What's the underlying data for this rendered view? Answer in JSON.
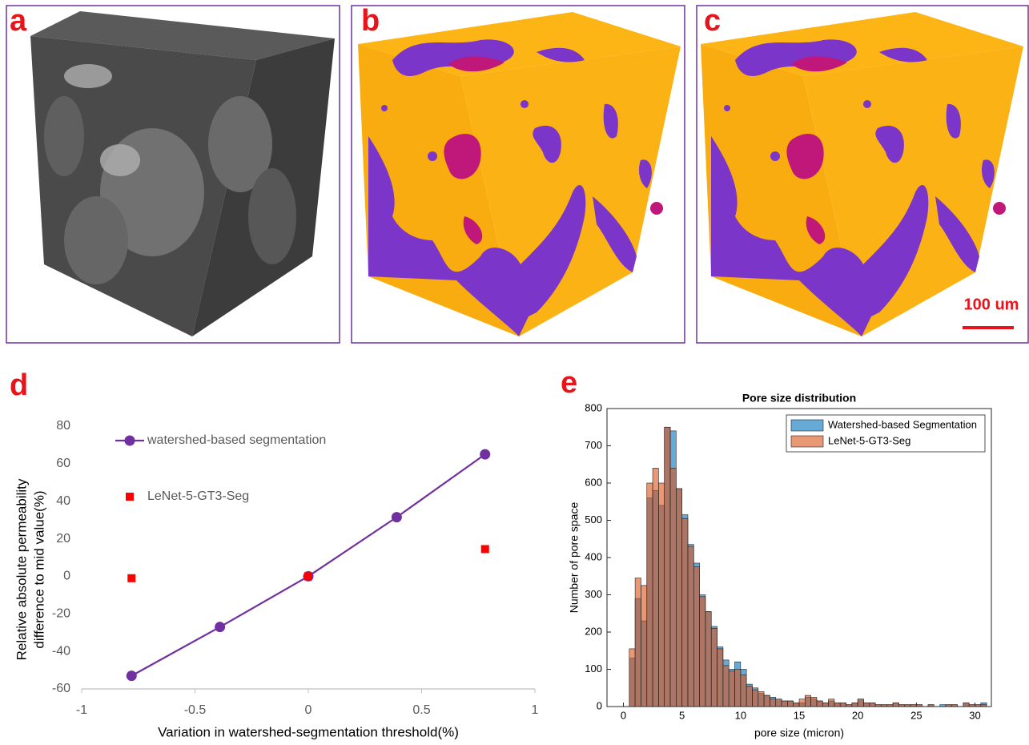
{
  "panel_labels": [
    "a",
    "b",
    "c",
    "d",
    "e"
  ],
  "scale_bar": "100 um",
  "chart_data": [
    {
      "type": "line",
      "xlabel": "Variation in watershed-segmentation threshold(%)",
      "ylabel": [
        "Relative absolute permeability",
        "difference to mid value(%)"
      ],
      "xlim": [
        -1,
        1
      ],
      "xticks": [
        -1,
        -0.5,
        0,
        0.5,
        1
      ],
      "ylim": [
        -60,
        80
      ],
      "yticks": [
        -60,
        -40,
        -20,
        0,
        20,
        40,
        60,
        80
      ],
      "grid": false,
      "legend": "upper left",
      "series": [
        {
          "name": "watershed-based segmentation",
          "color": "#7030a0",
          "marker": "circle",
          "show_line": true,
          "x": [
            -0.78,
            -0.39,
            0,
            0.39,
            0.78
          ],
          "values": [
            -53,
            -27,
            0,
            31.5,
            65
          ]
        },
        {
          "name": "LeNet-5-GT3-Seg",
          "color": "#ff0000",
          "marker": "square",
          "show_line": false,
          "x": [
            -0.78,
            0,
            0.78
          ],
          "values": [
            -1,
            0,
            14.5
          ]
        }
      ]
    },
    {
      "type": "histogram",
      "title": "Pore size distribution",
      "xlabel": "pore size (micron)",
      "ylabel": "Number of pore space",
      "xlim": [
        -1.4,
        31.4
      ],
      "xticks": [
        0,
        5,
        10,
        15,
        20,
        25,
        30
      ],
      "ylim": [
        0,
        800
      ],
      "yticks": [
        0,
        100,
        200,
        300,
        400,
        500,
        600,
        700,
        800
      ],
      "grid": false,
      "legend": "upper right",
      "bins": [
        0.5,
        1,
        1.5,
        2,
        2.5,
        3,
        3.5,
        4,
        4.5,
        5,
        5.5,
        6,
        6.5,
        7,
        7.5,
        8,
        8.5,
        9,
        9.5,
        10,
        10.5,
        11,
        11.5,
        12,
        12.5,
        13,
        13.5,
        14,
        14.5,
        15,
        15.5,
        16,
        16.5,
        17,
        17.5,
        18,
        18.5,
        19,
        19.5,
        20,
        20.5,
        21,
        21.5,
        22,
        22.5,
        23,
        23.5,
        24,
        24.5,
        25,
        25.5,
        26,
        26.5,
        27,
        27.5,
        28,
        28.5,
        29,
        29.5,
        30,
        30.5,
        31
      ],
      "series": [
        {
          "name": "Watershed-based Segmentation",
          "color": "#0072bd",
          "values": [
            130,
            290,
            230,
            560,
            580,
            540,
            750,
            740,
            585,
            515,
            435,
            385,
            300,
            255,
            215,
            160,
            125,
            100,
            120,
            100,
            60,
            50,
            35,
            30,
            25,
            20,
            15,
            15,
            10,
            10,
            25,
            20,
            15,
            10,
            15,
            10,
            10,
            5,
            10,
            20,
            10,
            10,
            5,
            5,
            5,
            10,
            5,
            5,
            5,
            5,
            0,
            5,
            0,
            5,
            5,
            5,
            0,
            10,
            5,
            5,
            10
          ]
        },
        {
          "name": "LeNet-5-GT3-Seg",
          "color": "#d95319",
          "values": [
            155,
            345,
            325,
            600,
            640,
            600,
            750,
            640,
            585,
            505,
            430,
            375,
            295,
            255,
            210,
            155,
            110,
            95,
            100,
            85,
            55,
            45,
            40,
            30,
            20,
            20,
            15,
            15,
            10,
            20,
            30,
            25,
            15,
            10,
            20,
            10,
            10,
            5,
            10,
            20,
            10,
            10,
            5,
            5,
            5,
            10,
            5,
            5,
            5,
            5,
            0,
            5,
            0,
            0,
            5,
            5,
            0,
            10,
            5,
            5,
            5
          ]
        }
      ]
    }
  ]
}
